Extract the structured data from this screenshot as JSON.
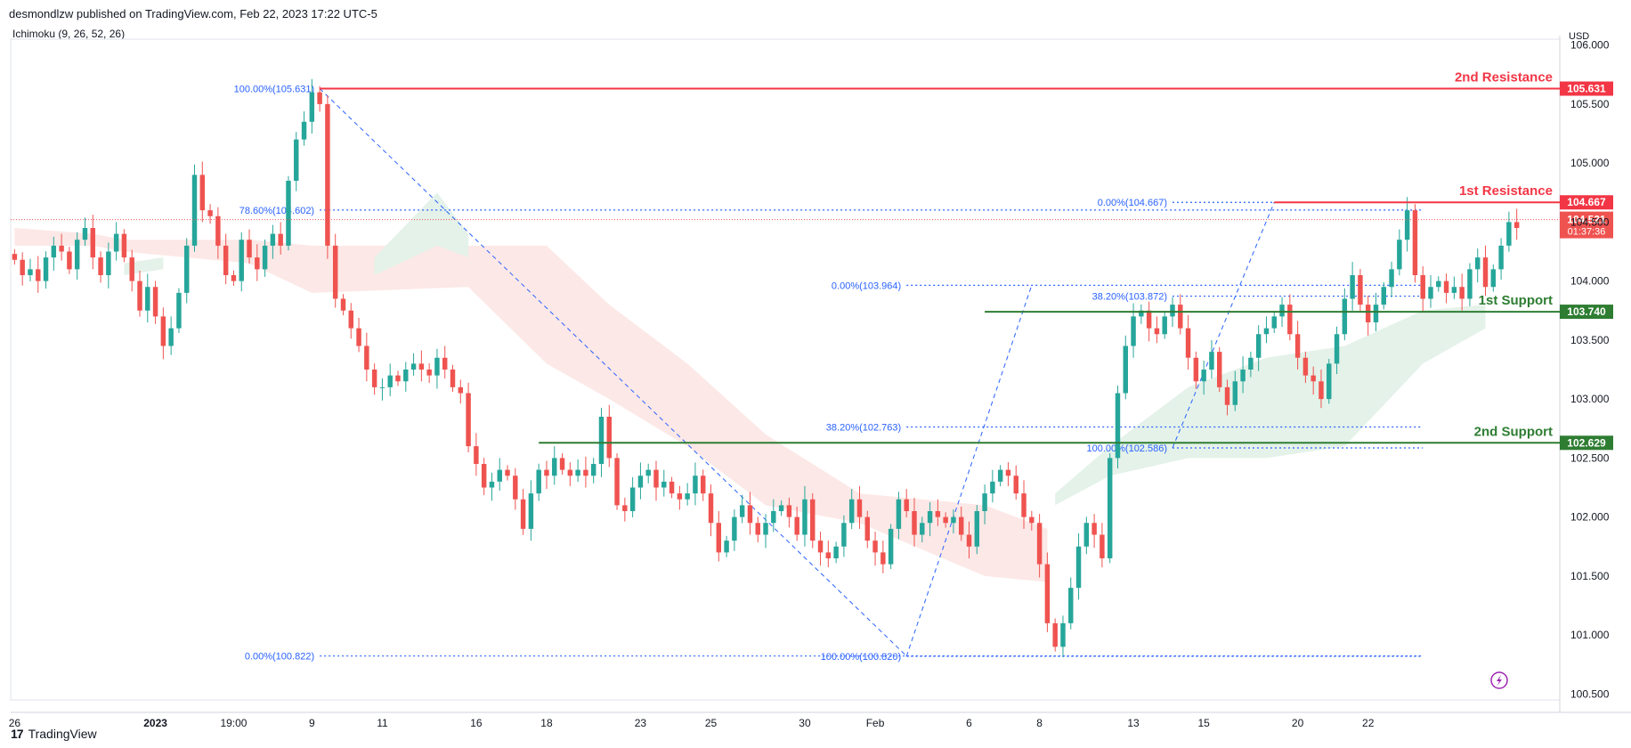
{
  "header": {
    "published": "desmondlzw published on TradingView.com, Feb 22, 2023 17:22 UTC-5",
    "indicator": "Ichimoku (9, 26, 52, 26)"
  },
  "footer": {
    "brand": "TradingView"
  },
  "colors": {
    "up": "#26a69a",
    "down": "#ef5350",
    "resistance": "#f23645",
    "support": "#2e7d32",
    "fib": "#2962ff",
    "cloud_bull": "#e4f2e9",
    "cloud_bear": "#fce8e6",
    "axis_text": "#131722"
  },
  "chart_data": {
    "type": "candlestick",
    "currency": "USD",
    "y_ticks": [
      "100.500",
      "101.000",
      "101.500",
      "102.000",
      "102.500",
      "103.000",
      "103.500",
      "104.000",
      "104.500",
      "105.000",
      "105.500",
      "106.000"
    ],
    "ylim": [
      100.45,
      106.05
    ],
    "x_labels": [
      {
        "label": "26",
        "i": 0
      },
      {
        "label": "2023",
        "i": 18,
        "bold": true
      },
      {
        "label": "19:00",
        "i": 28
      },
      {
        "label": "9",
        "i": 38
      },
      {
        "label": "11",
        "i": 47
      },
      {
        "label": "16",
        "i": 59
      },
      {
        "label": "18",
        "i": 68
      },
      {
        "label": "23",
        "i": 80
      },
      {
        "label": "25",
        "i": 89
      },
      {
        "label": "30",
        "i": 101
      },
      {
        "label": "Feb",
        "i": 110
      },
      {
        "label": "6",
        "i": 122
      },
      {
        "label": "8",
        "i": 131
      },
      {
        "label": "13",
        "i": 143
      },
      {
        "label": "15",
        "i": 152
      },
      {
        "label": "20",
        "i": 164
      },
      {
        "label": "22",
        "i": 173
      }
    ],
    "closes": [
      104.18,
      104.05,
      104.1,
      104.0,
      104.2,
      104.3,
      104.25,
      104.1,
      104.35,
      104.45,
      104.2,
      104.05,
      104.25,
      104.4,
      104.2,
      104.0,
      103.75,
      103.95,
      103.7,
      103.45,
      103.6,
      103.9,
      104.3,
      104.9,
      104.6,
      104.55,
      104.3,
      104.05,
      104.0,
      104.35,
      104.2,
      104.1,
      104.3,
      104.4,
      104.3,
      104.85,
      105.2,
      105.35,
      105.6,
      105.5,
      104.3,
      103.85,
      103.75,
      103.6,
      103.45,
      103.25,
      103.1,
      103.1,
      103.2,
      103.15,
      103.25,
      103.3,
      103.25,
      103.2,
      103.35,
      103.25,
      103.1,
      103.05,
      102.6,
      102.45,
      102.25,
      102.3,
      102.4,
      102.35,
      102.15,
      101.9,
      102.2,
      102.4,
      102.35,
      102.5,
      102.4,
      102.35,
      102.4,
      102.35,
      102.45,
      102.85,
      102.5,
      102.1,
      102.05,
      102.25,
      102.35,
      102.4,
      102.25,
      102.3,
      102.2,
      102.15,
      102.2,
      102.35,
      102.2,
      101.95,
      101.7,
      101.8,
      102.0,
      102.1,
      101.95,
      101.85,
      101.95,
      102.05,
      102.1,
      102.0,
      101.85,
      102.15,
      101.8,
      101.7,
      101.65,
      101.75,
      101.95,
      102.15,
      102.0,
      101.8,
      101.7,
      101.6,
      101.9,
      102.15,
      102.05,
      101.85,
      101.95,
      102.05,
      102.0,
      101.95,
      102.0,
      101.85,
      101.75,
      102.05,
      102.2,
      102.3,
      102.4,
      102.35,
      102.2,
      102.0,
      101.95,
      101.6,
      101.1,
      100.9,
      101.1,
      101.4,
      101.75,
      101.95,
      101.85,
      101.65,
      102.5,
      103.05,
      103.45,
      103.7,
      103.75,
      103.6,
      103.55,
      103.7,
      103.8,
      103.6,
      103.35,
      103.15,
      103.25,
      103.4,
      103.1,
      102.95,
      103.15,
      103.25,
      103.35,
      103.55,
      103.6,
      103.7,
      103.8,
      103.55,
      103.35,
      103.2,
      103.15,
      103.0,
      103.3,
      103.55,
      103.85,
      104.05,
      103.8,
      103.65,
      103.8,
      103.95,
      104.1,
      104.35,
      104.6,
      104.05,
      103.85,
      103.95,
      104.0,
      103.9,
      103.95,
      103.85,
      104.1,
      104.2,
      103.95,
      104.1,
      104.3,
      104.5,
      104.45
    ],
    "last_price": "104.521",
    "countdown": "01:37:36",
    "levels": [
      {
        "label": "2nd Resistance",
        "price": 105.631,
        "tag": "105.631",
        "kind": "resistance",
        "from_i": 39
      },
      {
        "label": "1st Resistance",
        "price": 104.667,
        "tag": "104.667",
        "kind": "resistance",
        "from_i": 161
      },
      {
        "label": "1st Support",
        "price": 103.74,
        "tag": "103.740",
        "kind": "support",
        "from_i": 124
      },
      {
        "label": "2nd Support",
        "price": 102.629,
        "tag": "102.629",
        "kind": "support",
        "from_i": 67
      }
    ],
    "fib_labels": [
      {
        "text": "100.00%(105.631)",
        "price": 105.631,
        "from_i": 39,
        "to_i": 39
      },
      {
        "text": "78.60%(104.602)",
        "price": 104.602,
        "from_i": 39,
        "to_i": 180
      },
      {
        "text": "0.00%(100.822)",
        "price": 100.822,
        "from_i": 39,
        "to_i": 180
      },
      {
        "text": "0.00%(103.964)",
        "price": 103.964,
        "from_i": 114,
        "to_i": 180
      },
      {
        "text": "38.20%(102.763)",
        "price": 102.763,
        "from_i": 114,
        "to_i": 180
      },
      {
        "text": "100.00%(100.820)",
        "price": 100.82,
        "from_i": 114,
        "to_i": 180
      },
      {
        "text": "0.00%(104.667)",
        "price": 104.667,
        "from_i": 148,
        "to_i": 180
      },
      {
        "text": "38.20%(103.872)",
        "price": 103.872,
        "from_i": 148,
        "to_i": 180
      },
      {
        "text": "100.00%(102.586)",
        "price": 102.586,
        "from_i": 148,
        "to_i": 180
      }
    ],
    "fib_diagonals": [
      {
        "from_i": 39,
        "from_p": 105.631,
        "to_i": 114,
        "to_p": 100.822
      },
      {
        "from_i": 114,
        "from_p": 100.82,
        "to_i": 130,
        "to_p": 103.964
      },
      {
        "from_i": 148,
        "from_p": 102.586,
        "to_i": 161,
        "to_p": 104.667
      }
    ],
    "cloud_bear": [
      {
        "i": 0,
        "hi": 104.45,
        "lo": 104.3
      },
      {
        "i": 10,
        "hi": 104.4,
        "lo": 104.3
      },
      {
        "i": 14,
        "hi": 104.35,
        "lo": 104.25
      },
      {
        "i": 30,
        "hi": 104.35,
        "lo": 104.15
      },
      {
        "i": 38,
        "hi": 104.3,
        "lo": 103.9
      },
      {
        "i": 58,
        "hi": 104.3,
        "lo": 103.95
      },
      {
        "i": 68,
        "hi": 104.3,
        "lo": 103.3
      },
      {
        "i": 76,
        "hi": 103.8,
        "lo": 103.0
      },
      {
        "i": 86,
        "hi": 103.3,
        "lo": 102.6
      },
      {
        "i": 96,
        "hi": 102.7,
        "lo": 102.1
      },
      {
        "i": 108,
        "hi": 102.2,
        "lo": 101.95
      },
      {
        "i": 124,
        "hi": 102.1,
        "lo": 101.5
      },
      {
        "i": 132,
        "hi": 101.9,
        "lo": 101.45
      }
    ],
    "cloud_bull": [
      {
        "i": 14,
        "hi": 104.15,
        "lo": 104.05
      },
      {
        "i": 19,
        "hi": 104.2,
        "lo": 104.1
      },
      {
        "i": 46,
        "hi": 104.2,
        "lo": 104.05
      },
      {
        "i": 54,
        "hi": 104.75,
        "lo": 104.3
      },
      {
        "i": 58,
        "hi": 104.4,
        "lo": 104.2
      },
      {
        "i": 133,
        "hi": 102.2,
        "lo": 102.1
      },
      {
        "i": 140,
        "hi": 102.6,
        "lo": 102.35
      },
      {
        "i": 150,
        "hi": 103.1,
        "lo": 102.5
      },
      {
        "i": 160,
        "hi": 103.35,
        "lo": 102.5
      },
      {
        "i": 170,
        "hi": 103.45,
        "lo": 102.6
      },
      {
        "i": 180,
        "hi": 103.75,
        "lo": 103.3
      },
      {
        "i": 188,
        "hi": 103.8,
        "lo": 103.6
      }
    ]
  }
}
